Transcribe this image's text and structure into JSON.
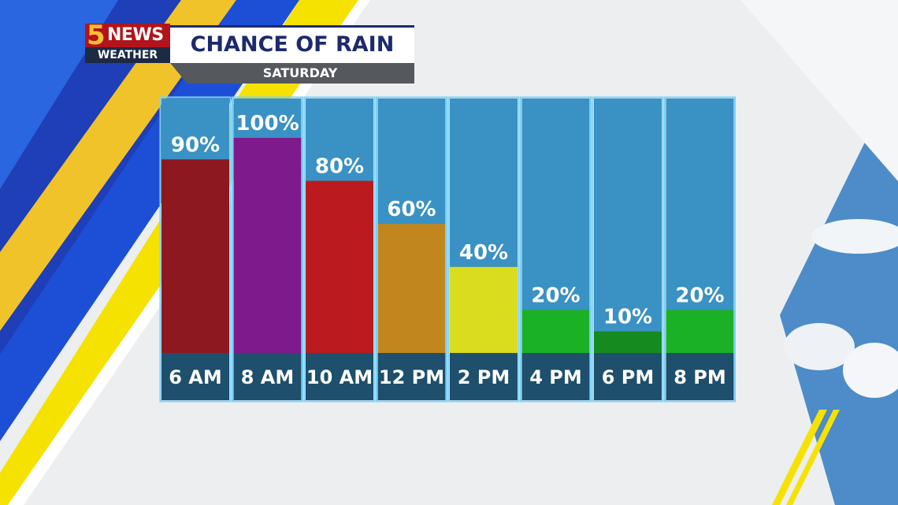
{
  "logo": {
    "number": "5",
    "word": "NEWS",
    "sub": "WEATHER"
  },
  "header": {
    "title": "CHANCE OF RAIN",
    "subtitle": "SATURDAY"
  },
  "chart_data": {
    "type": "bar",
    "title": "CHANCE OF RAIN",
    "subtitle": "SATURDAY",
    "categories": [
      "6 AM",
      "8 AM",
      "10 AM",
      "12 PM",
      "2 PM",
      "4 PM",
      "6 PM",
      "8 PM"
    ],
    "values": [
      90,
      100,
      80,
      60,
      40,
      20,
      10,
      20
    ],
    "value_labels": [
      "90%",
      "100%",
      "80%",
      "60%",
      "40%",
      "20%",
      "10%",
      "20%"
    ],
    "ylim": [
      0,
      100
    ],
    "grid": false,
    "bar_colors": [
      "#8e1820",
      "#7f1a8d",
      "#bb1b1f",
      "#c2861f",
      "#d9dd1e",
      "#1bb127",
      "#158b1f",
      "#1bb127"
    ],
    "column_color": "#3a91c3",
    "label_strip_color": "#1e4f6c"
  },
  "colors": {
    "accent_blue": "#1c4fd6",
    "accent_yellow": "#f6e200",
    "navy": "#1d2a6e"
  }
}
